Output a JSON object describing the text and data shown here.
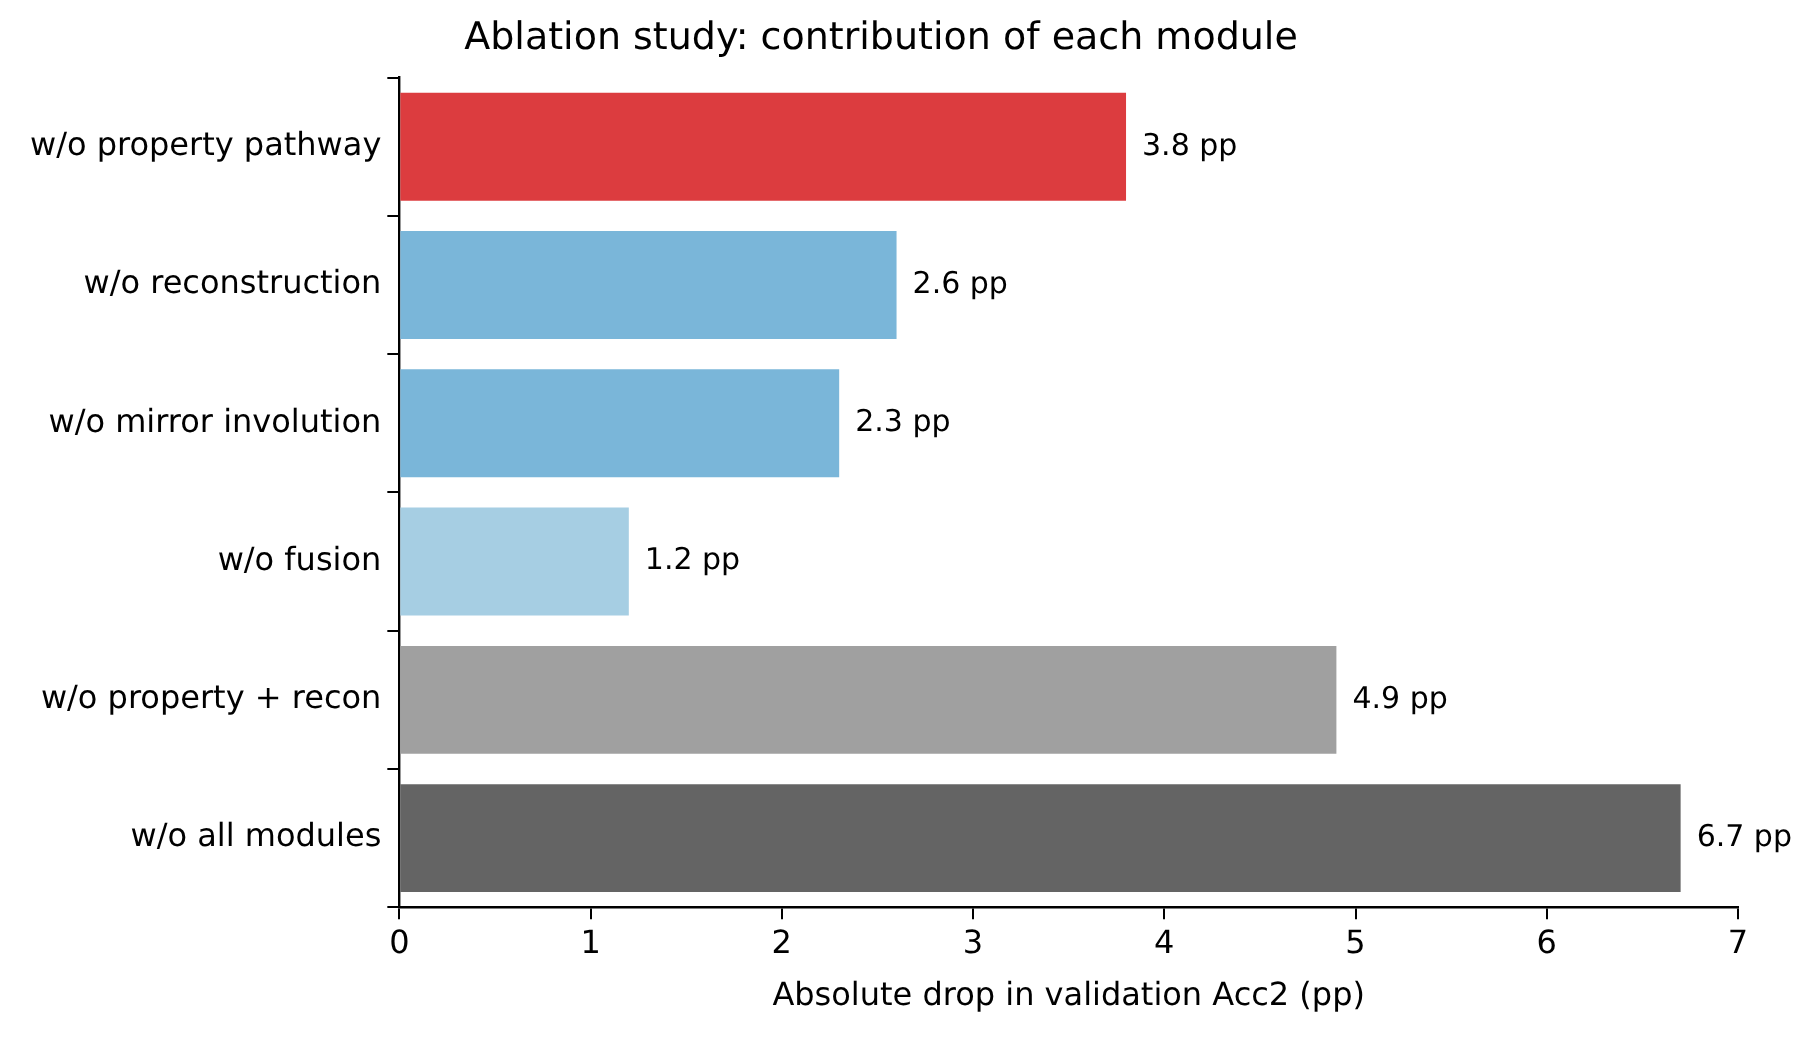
{
  "chart_data": {
    "type": "bar",
    "orientation": "horizontal",
    "title": "Ablation study: contribution of each module",
    "xlabel": "Absolute drop in validation Acc2 (pp)",
    "categories": [
      "w/o property pathway",
      "w/o reconstruction",
      "w/o mirror involution",
      "w/o fusion",
      "w/o property + recon",
      "w/o all modules"
    ],
    "values": [
      3.8,
      2.6,
      2.3,
      1.2,
      4.9,
      6.7
    ],
    "colors": [
      "#dc3c3f",
      "#7ab6d9",
      "#7ab6d9",
      "#a6cee3",
      "#a0a0a0",
      "#646464"
    ],
    "value_labels": [
      "3.8 pp",
      "2.6 pp",
      "2.3 pp",
      "1.2 pp",
      "4.9 pp",
      "6.7 pp"
    ],
    "xlim": [
      0,
      7
    ],
    "xticks": [
      0,
      1,
      2,
      3,
      4,
      5,
      6,
      7
    ],
    "grid": false,
    "legend": false
  }
}
